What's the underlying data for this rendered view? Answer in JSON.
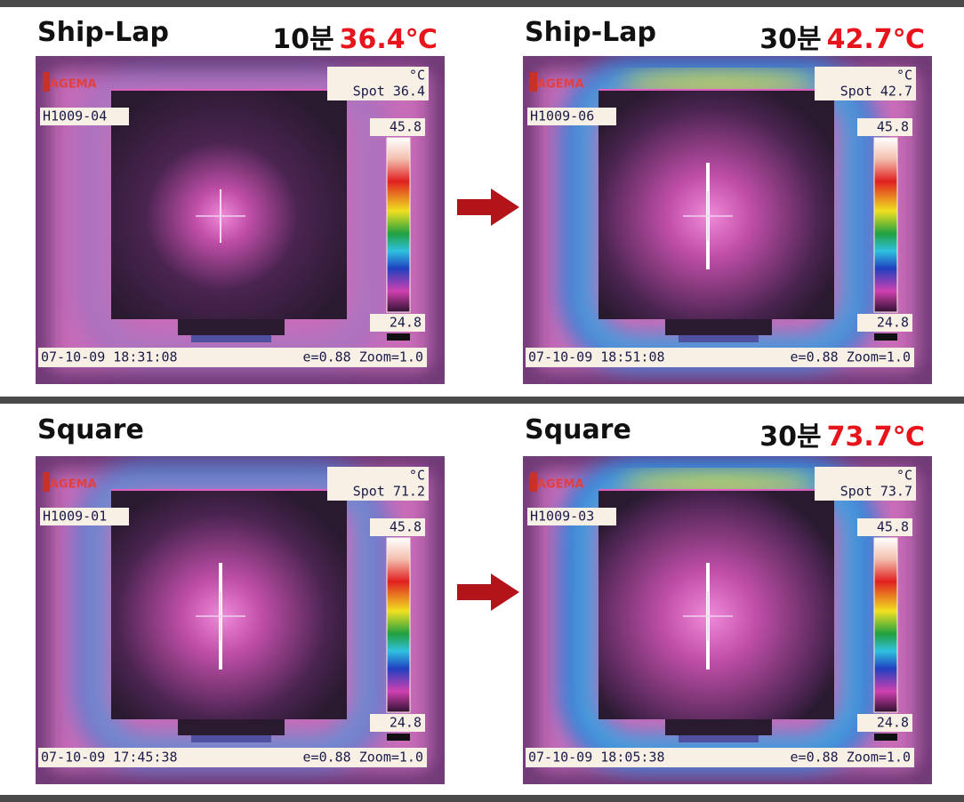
{
  "panels": [
    {
      "label": "Ship-Lap",
      "time": "10분",
      "temp": "36.4℃",
      "image": {
        "logo": "AGEMA",
        "unit": "°C",
        "spot": "Spot 36.4",
        "id": "H1009-04",
        "scale_max": "45.8",
        "scale_min": "24.8",
        "timestamp": "07-10-09 18:31:08",
        "settings": "e=0.88 Zoom=1.0"
      }
    },
    {
      "label": "Ship-Lap",
      "time": "30분",
      "temp": "42.7℃",
      "image": {
        "logo": "AGEMA",
        "unit": "°C",
        "spot": "Spot 42.7",
        "id": "H1009-06",
        "scale_max": "45.8",
        "scale_min": "24.8",
        "timestamp": "07-10-09 18:51:08",
        "settings": "e=0.88 Zoom=1.0"
      }
    },
    {
      "label": "Square",
      "image": {
        "logo": "AGEMA",
        "unit": "°C",
        "spot": "Spot 71.2",
        "id": "H1009-01",
        "scale_max": "45.8",
        "scale_min": "24.8",
        "timestamp": "07-10-09 17:45:38",
        "settings": "e=0.88 Zoom=1.0"
      }
    },
    {
      "label": "Square",
      "time": "30분",
      "temp": "73.7℃",
      "image": {
        "logo": "AGEMA",
        "unit": "°C",
        "spot": "Spot 73.7",
        "id": "H1009-03",
        "scale_max": "45.8",
        "scale_min": "24.8",
        "timestamp": "07-10-09 18:05:38",
        "settings": "e=0.88 Zoom=1.0"
      }
    }
  ]
}
